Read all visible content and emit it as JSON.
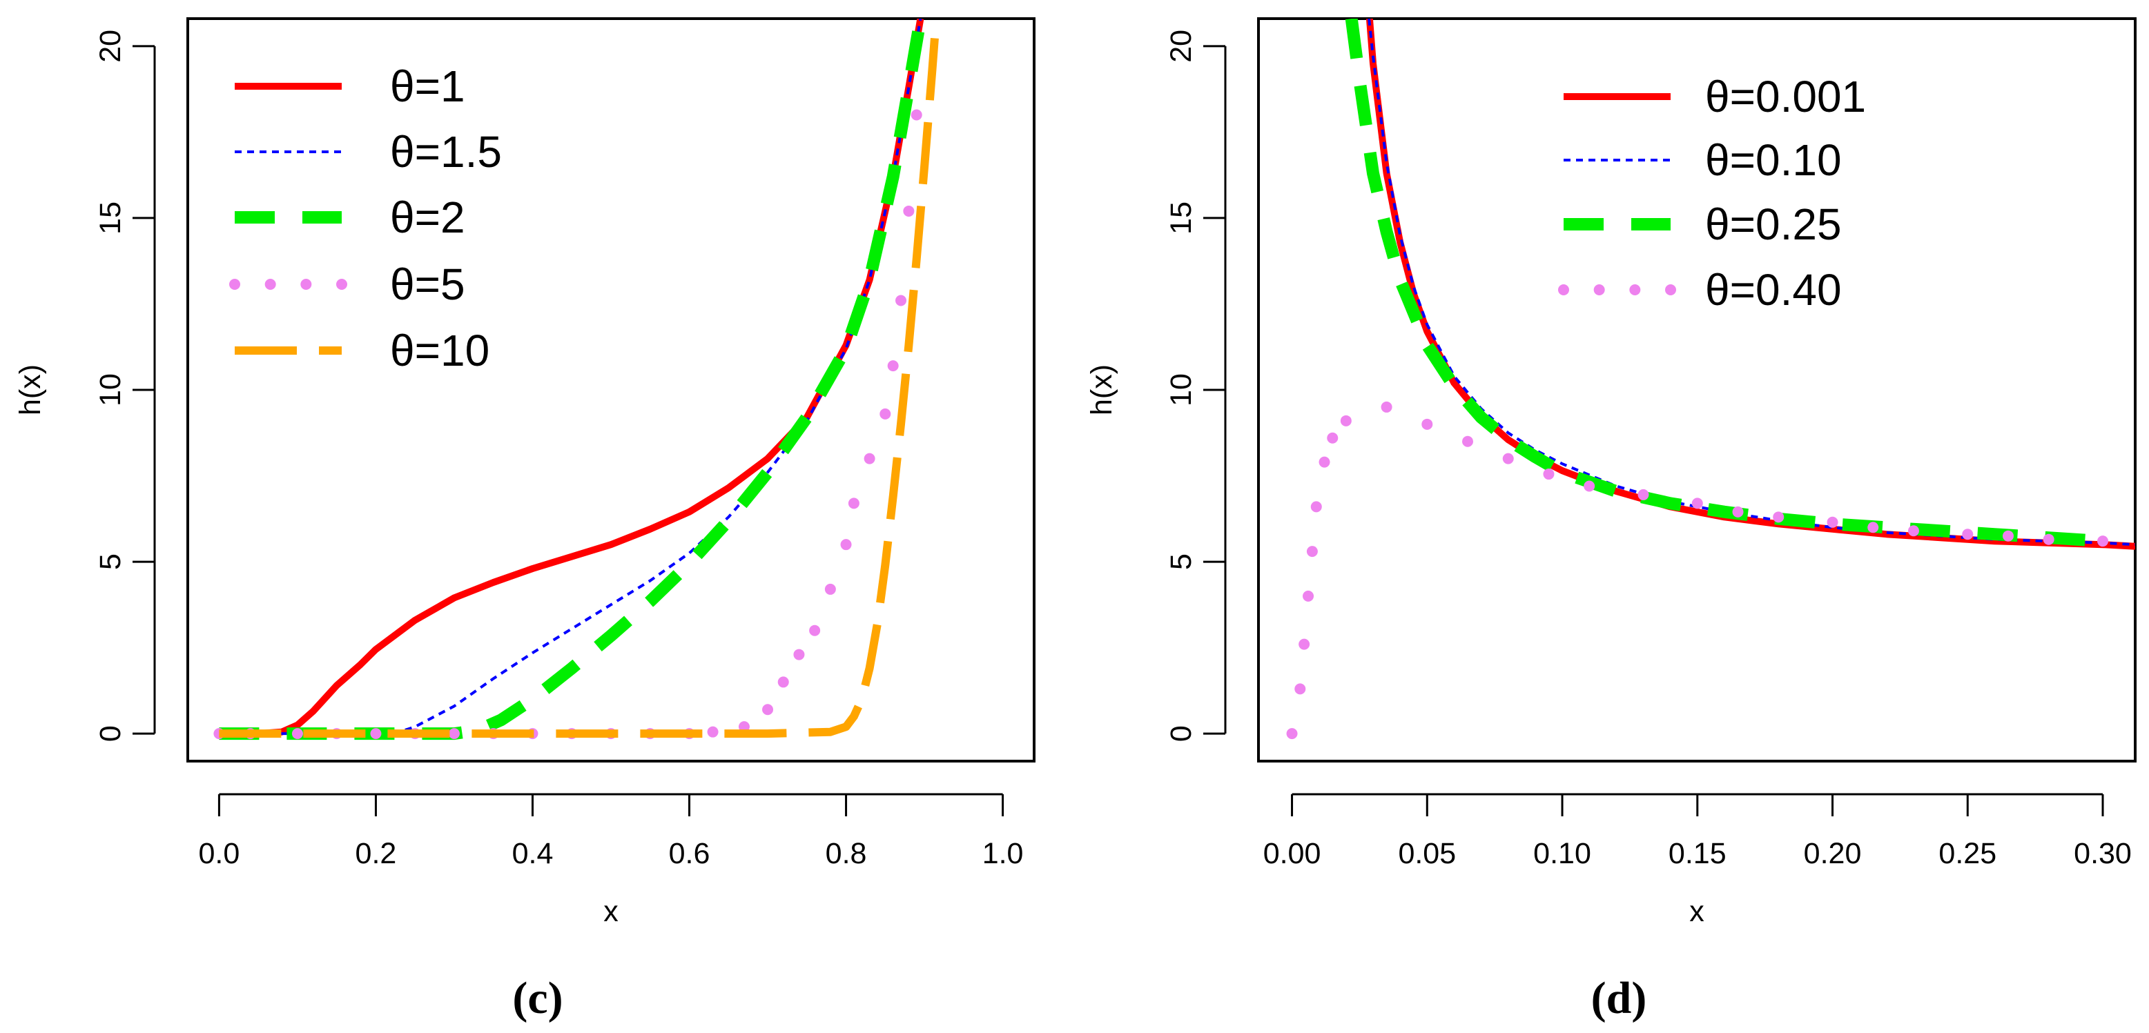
{
  "chart_data": [
    {
      "type": "line",
      "panel_label": "(c)",
      "xlabel": "x",
      "ylabel": "h(x)",
      "xlim": [
        -0.04,
        1.04
      ],
      "ylim": [
        -0.8,
        20.8
      ],
      "xticks": [
        0.0,
        0.2,
        0.4,
        0.6,
        0.8,
        1.0
      ],
      "xtick_labels": [
        "0.0",
        "0.2",
        "0.4",
        "0.6",
        "0.8",
        "1.0"
      ],
      "yticks": [
        0,
        5,
        10,
        15,
        20
      ],
      "ytick_labels": [
        "0",
        "5",
        "10",
        "15",
        "20"
      ],
      "grid": false,
      "legend_position": "top-left",
      "series": [
        {
          "name": "θ=1",
          "style": "solid",
          "color": "#ff0000",
          "x": [
            0.0,
            0.05,
            0.08,
            0.1,
            0.12,
            0.15,
            0.18,
            0.2,
            0.25,
            0.3,
            0.35,
            0.4,
            0.45,
            0.5,
            0.55,
            0.6,
            0.65,
            0.7,
            0.75,
            0.8,
            0.83,
            0.86,
            0.88,
            0.895
          ],
          "y": [
            0,
            0,
            0.05,
            0.25,
            0.65,
            1.4,
            2.0,
            2.45,
            3.3,
            3.95,
            4.4,
            4.8,
            5.15,
            5.5,
            5.95,
            6.45,
            7.15,
            8.0,
            9.2,
            11.3,
            13.2,
            16.2,
            18.8,
            20.8
          ]
        },
        {
          "name": "θ=1.5",
          "style": "dotted",
          "color": "#0000ff",
          "x": [
            0.0,
            0.15,
            0.2,
            0.23,
            0.25,
            0.3,
            0.35,
            0.4,
            0.45,
            0.5,
            0.55,
            0.6,
            0.65,
            0.7,
            0.75,
            0.8,
            0.83,
            0.86,
            0.88,
            0.895
          ],
          "y": [
            0,
            0,
            0,
            0.05,
            0.2,
            0.8,
            1.6,
            2.35,
            3.05,
            3.75,
            4.45,
            5.25,
            6.3,
            7.6,
            9.1,
            11.2,
            13.2,
            16.2,
            18.8,
            20.8
          ]
        },
        {
          "name": "θ=2",
          "style": "dashed",
          "color": "#00ee00",
          "x": [
            0.0,
            0.3,
            0.33,
            0.36,
            0.4,
            0.45,
            0.5,
            0.55,
            0.6,
            0.65,
            0.7,
            0.75,
            0.8,
            0.83,
            0.86,
            0.88,
            0.895
          ],
          "y": [
            0,
            0,
            0.1,
            0.4,
            1.0,
            1.9,
            2.85,
            3.85,
            4.95,
            6.2,
            7.6,
            9.2,
            11.2,
            13.2,
            16.2,
            18.8,
            20.8
          ]
        },
        {
          "name": "θ=5",
          "style": "points",
          "color": "#ee82ee",
          "x": [
            0.0,
            0.04,
            0.1,
            0.15,
            0.2,
            0.25,
            0.3,
            0.35,
            0.4,
            0.45,
            0.5,
            0.55,
            0.6,
            0.63,
            0.67,
            0.7,
            0.72,
            0.74,
            0.76,
            0.78,
            0.8,
            0.81,
            0.83,
            0.85,
            0.86,
            0.87,
            0.88,
            0.89
          ],
          "y": [
            0,
            0,
            0,
            0,
            0,
            0,
            0,
            0,
            0,
            0,
            0,
            0,
            0,
            0.05,
            0.2,
            0.7,
            1.5,
            2.3,
            3.0,
            4.2,
            5.5,
            6.7,
            8.0,
            9.3,
            10.7,
            12.6,
            15.2,
            18.0
          ]
        },
        {
          "name": "θ=10",
          "style": "longdash",
          "color": "#ffa500",
          "x": [
            0.0,
            0.1,
            0.2,
            0.3,
            0.4,
            0.5,
            0.6,
            0.7,
            0.78,
            0.8,
            0.81,
            0.82,
            0.83,
            0.84,
            0.85,
            0.86,
            0.87,
            0.88,
            0.89,
            0.9,
            0.91,
            0.915
          ],
          "y": [
            0,
            0,
            0,
            0,
            0,
            0,
            0,
            0,
            0.05,
            0.2,
            0.5,
            1.0,
            1.9,
            3.2,
            4.9,
            6.9,
            9.0,
            11.3,
            13.8,
            16.5,
            19.3,
            20.8
          ]
        }
      ]
    },
    {
      "type": "line",
      "panel_label": "(d)",
      "xlabel": "x",
      "ylabel": "h(x)",
      "xlim": [
        -0.0124,
        0.312
      ],
      "ylim": [
        -0.8,
        20.8
      ],
      "xticks": [
        0.0,
        0.05,
        0.1,
        0.15,
        0.2,
        0.25,
        0.3
      ],
      "xtick_labels": [
        "0.00",
        "0.05",
        "0.10",
        "0.15",
        "0.20",
        "0.25",
        "0.30"
      ],
      "yticks": [
        0,
        5,
        10,
        15,
        20
      ],
      "ytick_labels": [
        "0",
        "5",
        "10",
        "15",
        "20"
      ],
      "grid": false,
      "legend_position": "top-right",
      "series": [
        {
          "name": "θ=0.001",
          "style": "solid",
          "color": "#ff0000",
          "x": [
            0.0287,
            0.03,
            0.035,
            0.04,
            0.045,
            0.05,
            0.06,
            0.07,
            0.08,
            0.09,
            0.1,
            0.12,
            0.14,
            0.16,
            0.18,
            0.2,
            0.22,
            0.24,
            0.26,
            0.28,
            0.3,
            0.312
          ],
          "y": [
            20.8,
            19.5,
            16.3,
            14.3,
            12.8,
            11.7,
            10.2,
            9.25,
            8.55,
            8.05,
            7.65,
            7.05,
            6.6,
            6.3,
            6.1,
            5.95,
            5.8,
            5.7,
            5.6,
            5.55,
            5.5,
            5.45
          ]
        },
        {
          "name": "θ=0.10",
          "style": "dotted",
          "color": "#0000ff",
          "x": [
            0.0285,
            0.03,
            0.035,
            0.04,
            0.045,
            0.05,
            0.06,
            0.07,
            0.08,
            0.09,
            0.1,
            0.12,
            0.14,
            0.16,
            0.18,
            0.2,
            0.22,
            0.24,
            0.26,
            0.28,
            0.3,
            0.312
          ],
          "y": [
            20.8,
            19.7,
            16.6,
            14.5,
            13.0,
            11.9,
            10.4,
            9.45,
            8.75,
            8.25,
            7.85,
            7.2,
            6.75,
            6.45,
            6.2,
            6.0,
            5.85,
            5.75,
            5.65,
            5.6,
            5.55,
            5.5
          ]
        },
        {
          "name": "θ=0.25",
          "style": "dashed",
          "color": "#00ee00",
          "x": [
            0.022,
            0.025,
            0.03,
            0.035,
            0.04,
            0.05,
            0.06,
            0.07,
            0.08,
            0.09,
            0.1,
            0.12,
            0.14,
            0.16,
            0.18,
            0.2,
            0.22,
            0.24,
            0.26,
            0.28,
            0.3
          ],
          "y": [
            20.8,
            19.0,
            16.3,
            14.6,
            13.2,
            11.3,
            10.1,
            9.2,
            8.55,
            8.05,
            7.6,
            7.05,
            6.7,
            6.45,
            6.25,
            6.1,
            6.0,
            5.9,
            5.8,
            5.7,
            5.6
          ]
        },
        {
          "name": "θ=0.40",
          "style": "points",
          "color": "#ee82ee",
          "x": [
            0.0,
            0.003,
            0.0045,
            0.006,
            0.0075,
            0.009,
            0.012,
            0.015,
            0.02,
            0.035,
            0.05,
            0.065,
            0.08,
            0.095,
            0.11,
            0.13,
            0.15,
            0.165,
            0.18,
            0.2,
            0.215,
            0.23,
            0.25,
            0.265,
            0.28,
            0.3
          ],
          "y": [
            0,
            1.3,
            2.6,
            4.0,
            5.3,
            6.6,
            7.9,
            8.6,
            9.1,
            9.5,
            9.0,
            8.5,
            8.0,
            7.55,
            7.2,
            6.95,
            6.7,
            6.45,
            6.3,
            6.15,
            6.0,
            5.9,
            5.8,
            5.75,
            5.65,
            5.6
          ]
        }
      ]
    }
  ]
}
